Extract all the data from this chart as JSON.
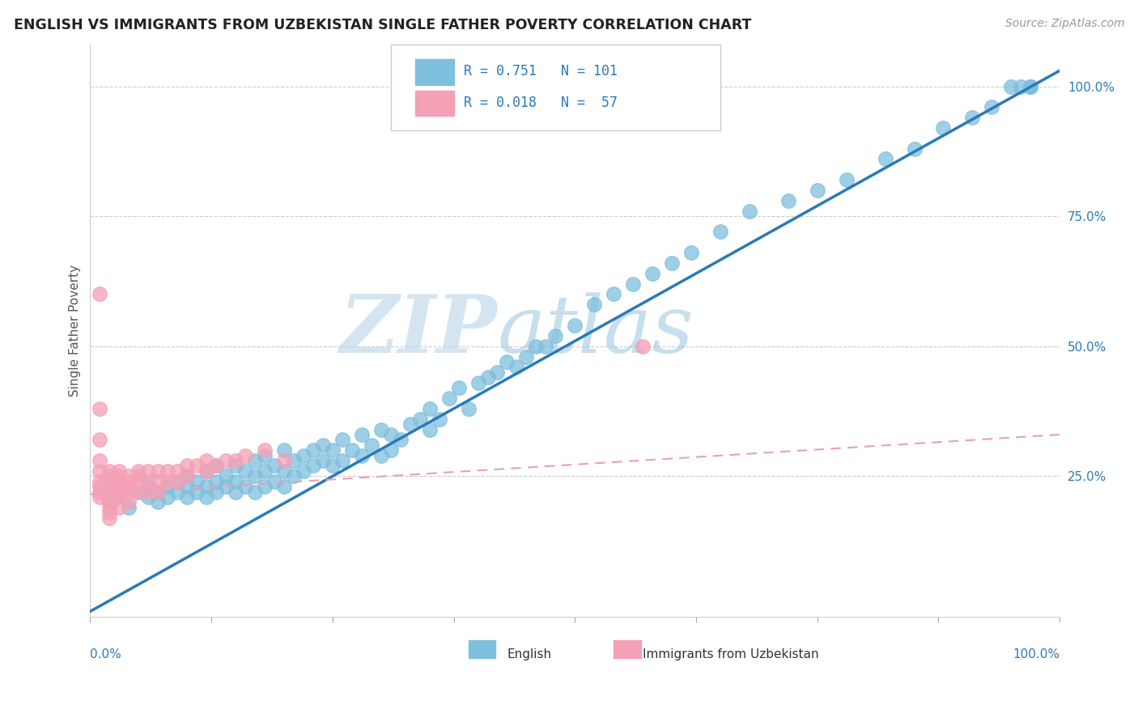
{
  "title": "ENGLISH VS IMMIGRANTS FROM UZBEKISTAN SINGLE FATHER POVERTY CORRELATION CHART",
  "source": "Source: ZipAtlas.com",
  "ylabel": "Single Father Poverty",
  "blue_color": "#7fbfde",
  "pink_color": "#f4a0b5",
  "trend_blue": "#2a7ab8",
  "trend_pink": "#e8a0b8",
  "watermark_zip": "ZIP",
  "watermark_atlas": "atlas",
  "blue_R": 0.751,
  "blue_N": 101,
  "pink_R": 0.018,
  "pink_N": 57,
  "x_range": [
    0.0,
    1.0
  ],
  "y_range": [
    -0.02,
    1.08
  ],
  "blue_trend_x0": 0.0,
  "blue_trend_y0": -0.01,
  "blue_trend_x1": 1.0,
  "blue_trend_y1": 1.03,
  "pink_trend_x0": 0.0,
  "pink_trend_y0": 0.215,
  "pink_trend_x1": 1.0,
  "pink_trend_y1": 0.33,
  "blue_x": [
    0.02,
    0.03,
    0.04,
    0.05,
    0.06,
    0.06,
    0.07,
    0.07,
    0.08,
    0.08,
    0.09,
    0.09,
    0.1,
    0.1,
    0.1,
    0.11,
    0.11,
    0.12,
    0.12,
    0.12,
    0.13,
    0.13,
    0.13,
    0.14,
    0.14,
    0.15,
    0.15,
    0.15,
    0.16,
    0.16,
    0.17,
    0.17,
    0.17,
    0.18,
    0.18,
    0.18,
    0.19,
    0.19,
    0.2,
    0.2,
    0.2,
    0.21,
    0.21,
    0.22,
    0.22,
    0.23,
    0.23,
    0.24,
    0.24,
    0.25,
    0.25,
    0.26,
    0.26,
    0.27,
    0.28,
    0.28,
    0.29,
    0.3,
    0.3,
    0.31,
    0.31,
    0.32,
    0.33,
    0.34,
    0.35,
    0.35,
    0.36,
    0.37,
    0.38,
    0.39,
    0.4,
    0.41,
    0.42,
    0.43,
    0.44,
    0.45,
    0.46,
    0.47,
    0.48,
    0.5,
    0.52,
    0.54,
    0.56,
    0.58,
    0.6,
    0.62,
    0.65,
    0.68,
    0.72,
    0.75,
    0.78,
    0.82,
    0.85,
    0.88,
    0.91,
    0.93,
    0.95,
    0.96,
    0.97,
    0.97,
    0.97
  ],
  "blue_y": [
    0.2,
    0.21,
    0.19,
    0.22,
    0.21,
    0.23,
    0.2,
    0.22,
    0.21,
    0.23,
    0.22,
    0.24,
    0.21,
    0.23,
    0.25,
    0.22,
    0.24,
    0.21,
    0.23,
    0.26,
    0.22,
    0.24,
    0.27,
    0.23,
    0.25,
    0.22,
    0.24,
    0.27,
    0.23,
    0.26,
    0.22,
    0.25,
    0.28,
    0.23,
    0.26,
    0.29,
    0.24,
    0.27,
    0.23,
    0.26,
    0.3,
    0.25,
    0.28,
    0.26,
    0.29,
    0.27,
    0.3,
    0.28,
    0.31,
    0.27,
    0.3,
    0.28,
    0.32,
    0.3,
    0.29,
    0.33,
    0.31,
    0.29,
    0.34,
    0.3,
    0.33,
    0.32,
    0.35,
    0.36,
    0.34,
    0.38,
    0.36,
    0.4,
    0.42,
    0.38,
    0.43,
    0.44,
    0.45,
    0.47,
    0.46,
    0.48,
    0.5,
    0.5,
    0.52,
    0.54,
    0.58,
    0.6,
    0.62,
    0.64,
    0.66,
    0.68,
    0.72,
    0.76,
    0.78,
    0.8,
    0.82,
    0.86,
    0.88,
    0.92,
    0.94,
    0.96,
    1.0,
    1.0,
    1.0,
    1.0,
    1.0
  ],
  "pink_x": [
    0.01,
    0.01,
    0.01,
    0.01,
    0.01,
    0.01,
    0.01,
    0.01,
    0.01,
    0.02,
    0.02,
    0.02,
    0.02,
    0.02,
    0.02,
    0.02,
    0.02,
    0.02,
    0.02,
    0.03,
    0.03,
    0.03,
    0.03,
    0.03,
    0.03,
    0.03,
    0.04,
    0.04,
    0.04,
    0.04,
    0.04,
    0.05,
    0.05,
    0.05,
    0.05,
    0.06,
    0.06,
    0.06,
    0.07,
    0.07,
    0.07,
    0.08,
    0.08,
    0.09,
    0.09,
    0.1,
    0.1,
    0.11,
    0.12,
    0.12,
    0.13,
    0.14,
    0.15,
    0.16,
    0.18,
    0.2,
    0.57
  ],
  "pink_y": [
    0.6,
    0.38,
    0.32,
    0.28,
    0.26,
    0.24,
    0.23,
    0.22,
    0.21,
    0.26,
    0.25,
    0.24,
    0.23,
    0.22,
    0.21,
    0.2,
    0.19,
    0.18,
    0.17,
    0.26,
    0.25,
    0.24,
    0.23,
    0.22,
    0.21,
    0.19,
    0.25,
    0.24,
    0.23,
    0.22,
    0.2,
    0.26,
    0.25,
    0.24,
    0.22,
    0.26,
    0.24,
    0.22,
    0.26,
    0.24,
    0.22,
    0.26,
    0.24,
    0.26,
    0.24,
    0.27,
    0.25,
    0.27,
    0.28,
    0.26,
    0.27,
    0.28,
    0.28,
    0.29,
    0.3,
    0.28,
    0.5
  ]
}
